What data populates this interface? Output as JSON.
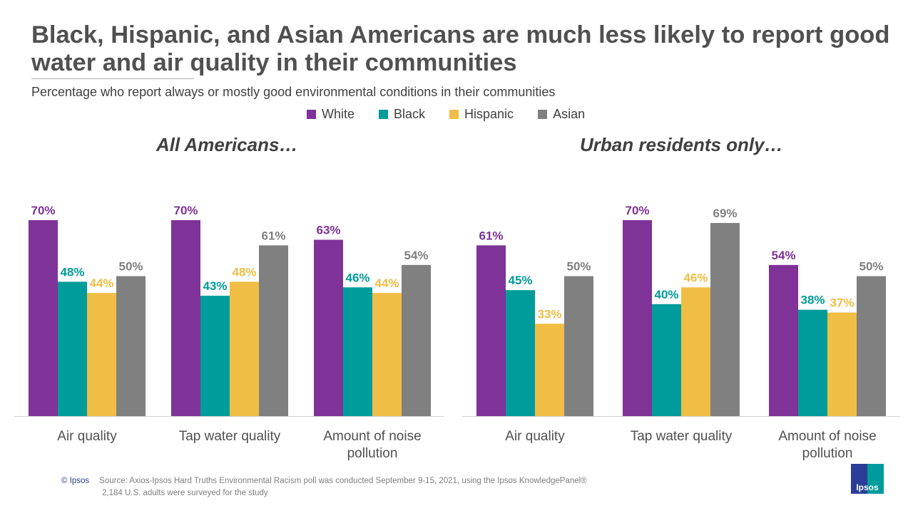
{
  "title": "Black, Hispanic, and Asian Americans are much less likely to report good water and air quality in their communities",
  "subtitle": "Percentage who report always or mostly good environmental conditions in their communities",
  "footer": {
    "copyright": "© Ipsos",
    "source_line1": "Source: Axios-Ipsos Hard Truths Environmental Racism poll was conducted September 9-15, 2021, using the Ipsos KnowledgePanel®",
    "source_line2": "2,184 U.S. adults were surveyed for the study",
    "logo_text": "Ipsos"
  },
  "colors": {
    "White": "#7f3298",
    "Black": "#009b9b",
    "Hispanic": "#f0be45",
    "Asian": "#808080",
    "text": "#505050"
  },
  "legend": [
    "White",
    "Black",
    "Hispanic",
    "Asian"
  ],
  "chart_data": [
    {
      "type": "bar",
      "title": "All Americans…",
      "categories": [
        "Air quality",
        "Tap water quality",
        "Amount of noise pollution"
      ],
      "series": [
        {
          "name": "White",
          "values": [
            70,
            70,
            63
          ]
        },
        {
          "name": "Black",
          "values": [
            48,
            43,
            46
          ]
        },
        {
          "name": "Hispanic",
          "values": [
            44,
            48,
            44
          ]
        },
        {
          "name": "Asian",
          "values": [
            50,
            61,
            54
          ]
        }
      ],
      "ylim": [
        0,
        70
      ],
      "grid": false,
      "legend": "top-center"
    },
    {
      "type": "bar",
      "title": "Urban residents only…",
      "categories": [
        "Air quality",
        "Tap water quality",
        "Amount of noise pollution"
      ],
      "series": [
        {
          "name": "White",
          "values": [
            61,
            70,
            54
          ]
        },
        {
          "name": "Black",
          "values": [
            45,
            40,
            38
          ]
        },
        {
          "name": "Hispanic",
          "values": [
            33,
            46,
            37
          ]
        },
        {
          "name": "Asian",
          "values": [
            50,
            69,
            50
          ]
        }
      ],
      "ylim": [
        0,
        70
      ],
      "grid": false,
      "legend": "top-center"
    }
  ]
}
